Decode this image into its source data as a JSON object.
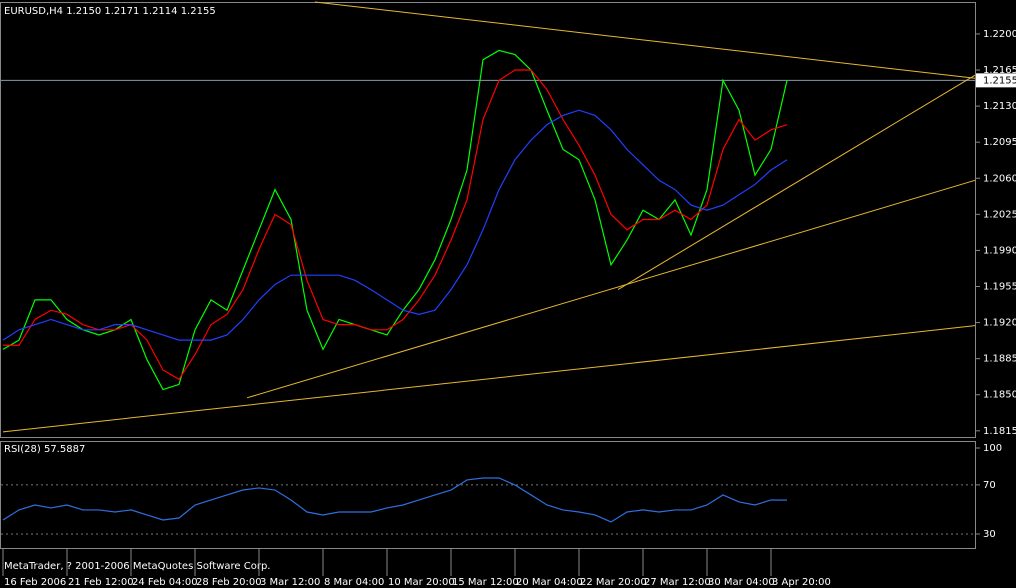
{
  "chart_data": [
    {
      "type": "line",
      "title": "EURUSD,H4  1.2150 1.2171 1.2114 1.2155",
      "x": [
        0,
        4,
        8,
        12,
        16,
        20,
        24,
        28,
        32,
        36,
        40,
        44,
        48,
        52,
        56,
        60,
        64,
        68,
        72,
        76,
        80,
        84,
        88,
        92,
        96,
        100,
        104,
        108,
        112,
        116,
        120,
        124,
        128,
        132,
        136,
        140,
        144,
        148,
        152,
        156,
        160,
        164,
        168,
        172,
        176,
        180,
        184,
        188,
        192,
        196
      ],
      "xlim": [
        0,
        243
      ],
      "ylim": [
        1.1809,
        1.2231
      ],
      "yticks": [
        {
          "value": 1.22,
          "label": "1.2200"
        },
        {
          "value": 1.2165,
          "label": "1.2165"
        },
        {
          "value": 1.213,
          "label": "1.2130"
        },
        {
          "value": 1.2095,
          "label": "1.2095"
        },
        {
          "value": 1.206,
          "label": "1.2060"
        },
        {
          "value": 1.2025,
          "label": "1.2025"
        },
        {
          "value": 1.199,
          "label": "1.1990"
        },
        {
          "value": 1.1955,
          "label": "1.1955"
        },
        {
          "value": 1.192,
          "label": "1.1920"
        },
        {
          "value": 1.1885,
          "label": "1.1885"
        },
        {
          "value": 1.185,
          "label": "1.1850"
        },
        {
          "value": 1.1815,
          "label": "1.1815"
        }
      ],
      "current_price": {
        "value": 1.2155,
        "label": "1.2155"
      },
      "series": [
        {
          "color": "#00ff00",
          "values": [
            1.1894,
            1.1903,
            1.1942,
            1.1942,
            1.1923,
            1.1913,
            1.1908,
            1.1913,
            1.1923,
            1.1884,
            1.1855,
            1.186,
            1.1913,
            1.1942,
            1.1932,
            1.1971,
            1.201,
            1.2049,
            1.202,
            1.1932,
            1.1894,
            1.1923,
            1.1918,
            1.1913,
            1.1908,
            1.1932,
            1.1952,
            1.1981,
            1.202,
            1.2068,
            1.2175,
            1.2184,
            1.218,
            1.2165,
            1.2126,
            1.2088,
            1.2078,
            1.2039,
            1.1976,
            1.2,
            1.2029,
            1.202,
            1.2039,
            1.2005,
            1.2049,
            1.2155,
            1.2126,
            1.2063,
            1.2088,
            1.2155
          ]
        },
        {
          "color": "#ff0000",
          "values": [
            1.1898,
            1.1898,
            1.1923,
            1.1932,
            1.1928,
            1.1918,
            1.1913,
            1.1913,
            1.1918,
            1.1903,
            1.1874,
            1.1865,
            1.1889,
            1.1918,
            1.1928,
            1.1952,
            1.1991,
            1.2025,
            1.2015,
            1.1961,
            1.1923,
            1.1918,
            1.1918,
            1.1913,
            1.1913,
            1.1923,
            1.1942,
            1.1966,
            1.2,
            1.2039,
            1.2117,
            1.2155,
            1.2165,
            1.2165,
            1.2146,
            1.2117,
            1.2092,
            1.2063,
            1.2025,
            1.201,
            1.202,
            1.202,
            1.2029,
            1.202,
            1.2034,
            1.2088,
            1.2117,
            1.2097,
            1.2107,
            1.2112
          ]
        },
        {
          "color": "#2040ff",
          "values": [
            1.1903,
            1.1913,
            1.1918,
            1.1923,
            1.1918,
            1.1913,
            1.1913,
            1.1918,
            1.1918,
            1.1913,
            1.1908,
            1.1903,
            1.1903,
            1.1903,
            1.1908,
            1.1923,
            1.1942,
            1.1957,
            1.1966,
            1.1966,
            1.1966,
            1.1966,
            1.1961,
            1.1952,
            1.1942,
            1.1932,
            1.1928,
            1.1932,
            1.1952,
            1.1976,
            1.201,
            1.2049,
            1.2078,
            1.2097,
            1.2112,
            1.2121,
            1.2126,
            1.2121,
            1.2107,
            1.2088,
            1.2073,
            1.2058,
            1.2049,
            1.2034,
            1.2029,
            1.2034,
            1.2044,
            1.2054,
            1.2068,
            1.2078
          ]
        }
      ],
      "trendlines": [
        {
          "color": "#e8b830",
          "x": [
            78,
            243
          ],
          "y": [
            1.2231,
            1.2157
          ]
        },
        {
          "color": "#e8b830",
          "x": [
            0,
            243
          ],
          "y": [
            1.1814,
            1.1917
          ]
        },
        {
          "color": "#e8b830",
          "x": [
            61,
            243
          ],
          "y": [
            1.1847,
            1.2058
          ]
        },
        {
          "color": "#e8b830",
          "x": [
            153.75,
            243
          ],
          "y": [
            1.1952,
            1.216
          ]
        }
      ]
    },
    {
      "type": "line",
      "title": "RSI(28) 57.5887",
      "x": [
        0,
        4,
        8,
        12,
        16,
        20,
        24,
        28,
        32,
        36,
        40,
        44,
        48,
        52,
        56,
        60,
        64,
        68,
        72,
        76,
        80,
        84,
        88,
        92,
        96,
        100,
        104,
        108,
        112,
        116,
        120,
        124,
        128,
        132,
        136,
        140,
        144,
        148,
        152,
        156,
        160,
        164,
        168,
        172,
        176,
        180,
        184,
        188,
        192,
        196
      ],
      "xlim": [
        0,
        243
      ],
      "ylim": [
        18.6,
        105.7
      ],
      "yticks": [
        100,
        70,
        30
      ],
      "levels": [
        70,
        30
      ],
      "xticks": [
        {
          "value": 0,
          "label": "16 Feb 2006"
        },
        {
          "value": 16,
          "label": "21 Feb 12:00"
        },
        {
          "value": 32,
          "label": "24 Feb 04:00"
        },
        {
          "value": 48,
          "label": "28 Feb 20:00"
        },
        {
          "value": 64,
          "label": "3 Mar 12:00"
        },
        {
          "value": 80,
          "label": "8 Mar 04:00"
        },
        {
          "value": 96,
          "label": "10 Mar 20:00"
        },
        {
          "value": 112,
          "label": "15 Mar 12:00"
        },
        {
          "value": 128,
          "label": "20 Mar 04:00"
        },
        {
          "value": 144,
          "label": "22 Mar 20:00"
        },
        {
          "value": 160,
          "label": "27 Mar 12:00"
        },
        {
          "value": 176,
          "label": "30 Mar 04:00"
        },
        {
          "value": 192,
          "label": "3 Apr 20:00"
        }
      ],
      "series": [
        {
          "color": "#2f6fe0",
          "values": [
            41.4,
            49.6,
            53.6,
            51.2,
            53.6,
            49.6,
            49.6,
            47.9,
            49.6,
            45.5,
            41.4,
            43.0,
            53.6,
            57.7,
            61.8,
            65.8,
            67.5,
            65.8,
            57.7,
            47.9,
            45.5,
            47.9,
            47.9,
            47.9,
            51.2,
            53.6,
            57.7,
            61.8,
            65.8,
            74.0,
            75.6,
            75.6,
            69.9,
            61.8,
            53.6,
            49.6,
            47.9,
            45.5,
            39.8,
            47.9,
            49.6,
            47.9,
            49.6,
            49.6,
            53.6,
            61.8,
            56.1,
            53.6,
            57.7,
            57.6
          ]
        }
      ]
    }
  ],
  "footer": "MetaTrader, ? 2001-2006 MetaQuotes Software Corp."
}
